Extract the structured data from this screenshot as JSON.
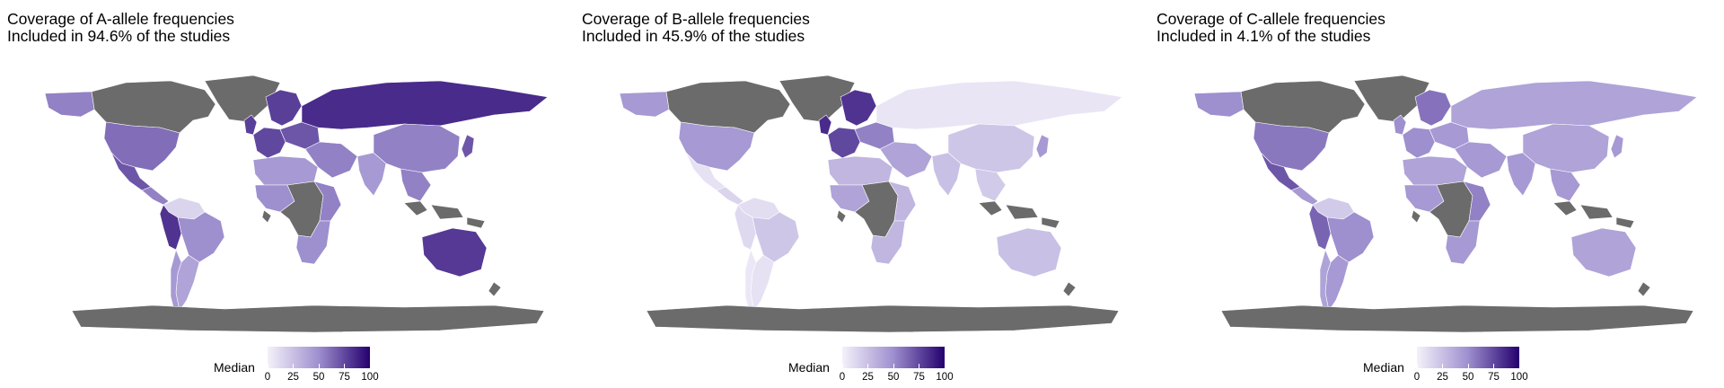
{
  "panels": [
    {
      "title": "Coverage of A-allele frequencies",
      "subtitle": "Included in 94.6% of the studies",
      "regions": {
        "north_america": 55,
        "usa": 62,
        "mexico": 70,
        "central_america": 55,
        "south_america_north": 15,
        "andes": 82,
        "brazil": 50,
        "argentina": 40,
        "chile": 45,
        "greenland": "na",
        "canada": "na",
        "uk": 78,
        "scandinavia": 78,
        "western_europe": 75,
        "eastern_europe": 70,
        "russia": 85,
        "middle_east": 55,
        "north_africa": 45,
        "west_africa": 50,
        "central_africa": "na",
        "east_africa": 55,
        "southern_africa": 50,
        "india": 45,
        "china": 55,
        "southeast_asia": 55,
        "japan": 70,
        "australia": 80,
        "antarctica": "na"
      }
    },
    {
      "title": "Coverage of B-allele frequencies",
      "subtitle": "Included in 45.9% of the studies",
      "regions": {
        "north_america": 45,
        "usa": 45,
        "mexico": 8,
        "central_america": 15,
        "south_america_north": 10,
        "andes": 12,
        "brazil": 22,
        "argentina": 8,
        "chile": 5,
        "greenland": "na",
        "canada": "na",
        "uk": 85,
        "scandinavia": 82,
        "western_europe": 75,
        "eastern_europe": 55,
        "russia": 6,
        "middle_east": 40,
        "north_africa": 30,
        "west_africa": 40,
        "central_africa": "na",
        "east_africa": 30,
        "southern_africa": 30,
        "india": 25,
        "china": 22,
        "southeast_asia": 20,
        "japan": 45,
        "australia": 25,
        "antarctica": "na"
      }
    },
    {
      "title": "Coverage of C-allele frequencies",
      "subtitle": "Included in 4.1% of the studies",
      "regions": {
        "north_america": 50,
        "usa": 58,
        "mexico": 70,
        "central_america": 45,
        "south_america_north": 20,
        "andes": 65,
        "brazil": 50,
        "argentina": 45,
        "chile": 40,
        "greenland": "na",
        "canada": "na",
        "uk": 50,
        "scandinavia": 60,
        "western_europe": 50,
        "eastern_europe": 45,
        "russia": 40,
        "middle_east": 45,
        "north_africa": 40,
        "west_africa": 45,
        "central_africa": "na",
        "east_africa": 55,
        "southern_africa": 45,
        "india": 45,
        "china": 40,
        "southeast_asia": 45,
        "japan": 45,
        "australia": 40,
        "antarctica": "na"
      }
    }
  ],
  "legend": {
    "title": "Median",
    "ticks": [
      "0",
      "25",
      "50",
      "75",
      "100"
    ],
    "range": [
      0,
      100
    ]
  },
  "colors": {
    "no_data": "#6b6b6b",
    "scale_low": "#f4f1fa",
    "scale_mid": "#9e8fcf",
    "scale_high": "#24006e"
  }
}
